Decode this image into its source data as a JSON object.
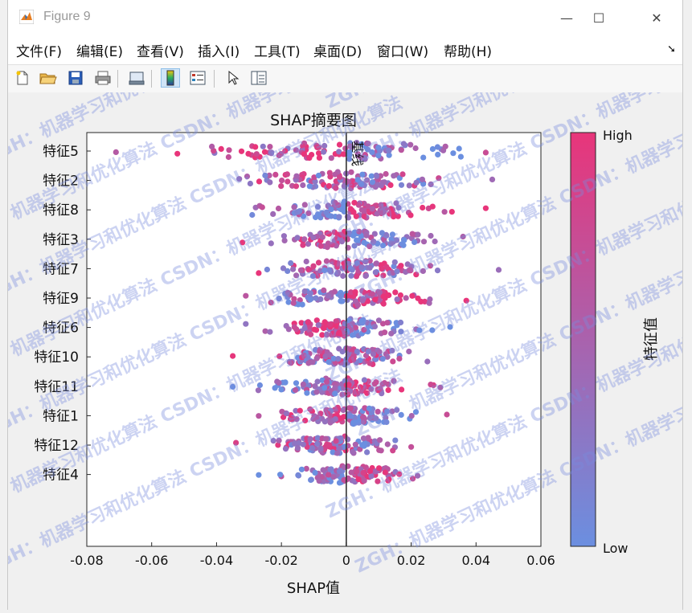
{
  "window": {
    "title": "Figure 9",
    "minimize_glyph": "—",
    "maximize_glyph": "☐",
    "close_glyph": "✕"
  },
  "menu": [
    {
      "label": "文件(F)"
    },
    {
      "label": "编辑(E)"
    },
    {
      "label": "查看(V)"
    },
    {
      "label": "插入(I)"
    },
    {
      "label": "工具(T)"
    },
    {
      "label": "桌面(D)"
    },
    {
      "label": "窗口(W)"
    },
    {
      "label": "帮助(H)"
    }
  ],
  "toolbar": [
    {
      "icon": "new-figure-icon"
    },
    {
      "icon": "open-file-icon"
    },
    {
      "icon": "save-icon"
    },
    {
      "icon": "print-icon"
    },
    {
      "icon": "link-plot-icon"
    },
    {
      "icon": "colorbar-toggle-icon"
    },
    {
      "icon": "legend-toggle-icon"
    },
    {
      "icon": "pointer-icon"
    },
    {
      "icon": "property-inspector-icon"
    }
  ],
  "watermark": "ZGH：机器学习和优化算法  CSDN：机器学习和优化算法",
  "chart_data": {
    "type": "scatter",
    "title": "SHAP摘要图",
    "xlabel": "SHAP值",
    "ylabel": "",
    "xlim": [
      -0.08,
      0.06
    ],
    "xticks": [
      -0.08,
      -0.06,
      -0.04,
      -0.02,
      0,
      0.02,
      0.04,
      0.06
    ],
    "xtick_labels": [
      "-0.08",
      "-0.06",
      "-0.04",
      "-0.02",
      "0",
      "0.02",
      "0.04",
      "0.06"
    ],
    "baseline": {
      "x": 0,
      "label": "基线"
    },
    "features": [
      {
        "name": "特征5",
        "min": -0.071,
        "max": 0.043
      },
      {
        "name": "特征2",
        "min": -0.033,
        "max": 0.045
      },
      {
        "name": "特征8",
        "min": -0.029,
        "max": 0.043
      },
      {
        "name": "特征3",
        "min": -0.032,
        "max": 0.036
      },
      {
        "name": "特征7",
        "min": -0.027,
        "max": 0.047
      },
      {
        "name": "特征9",
        "min": -0.031,
        "max": 0.037
      },
      {
        "name": "特征6",
        "min": -0.031,
        "max": 0.032
      },
      {
        "name": "特征10",
        "min": -0.035,
        "max": 0.025
      },
      {
        "name": "特征11",
        "min": -0.035,
        "max": 0.029
      },
      {
        "name": "特征1",
        "min": -0.027,
        "max": 0.031
      },
      {
        "name": "特征12",
        "min": -0.034,
        "max": 0.02
      },
      {
        "name": "特征4",
        "min": -0.027,
        "max": 0.022
      }
    ],
    "colorbar": {
      "label": "特征值",
      "high_label": "High",
      "low_label": "Low",
      "high_color": "#e8357a",
      "low_color": "#6b8fe0"
    },
    "grid": false
  }
}
